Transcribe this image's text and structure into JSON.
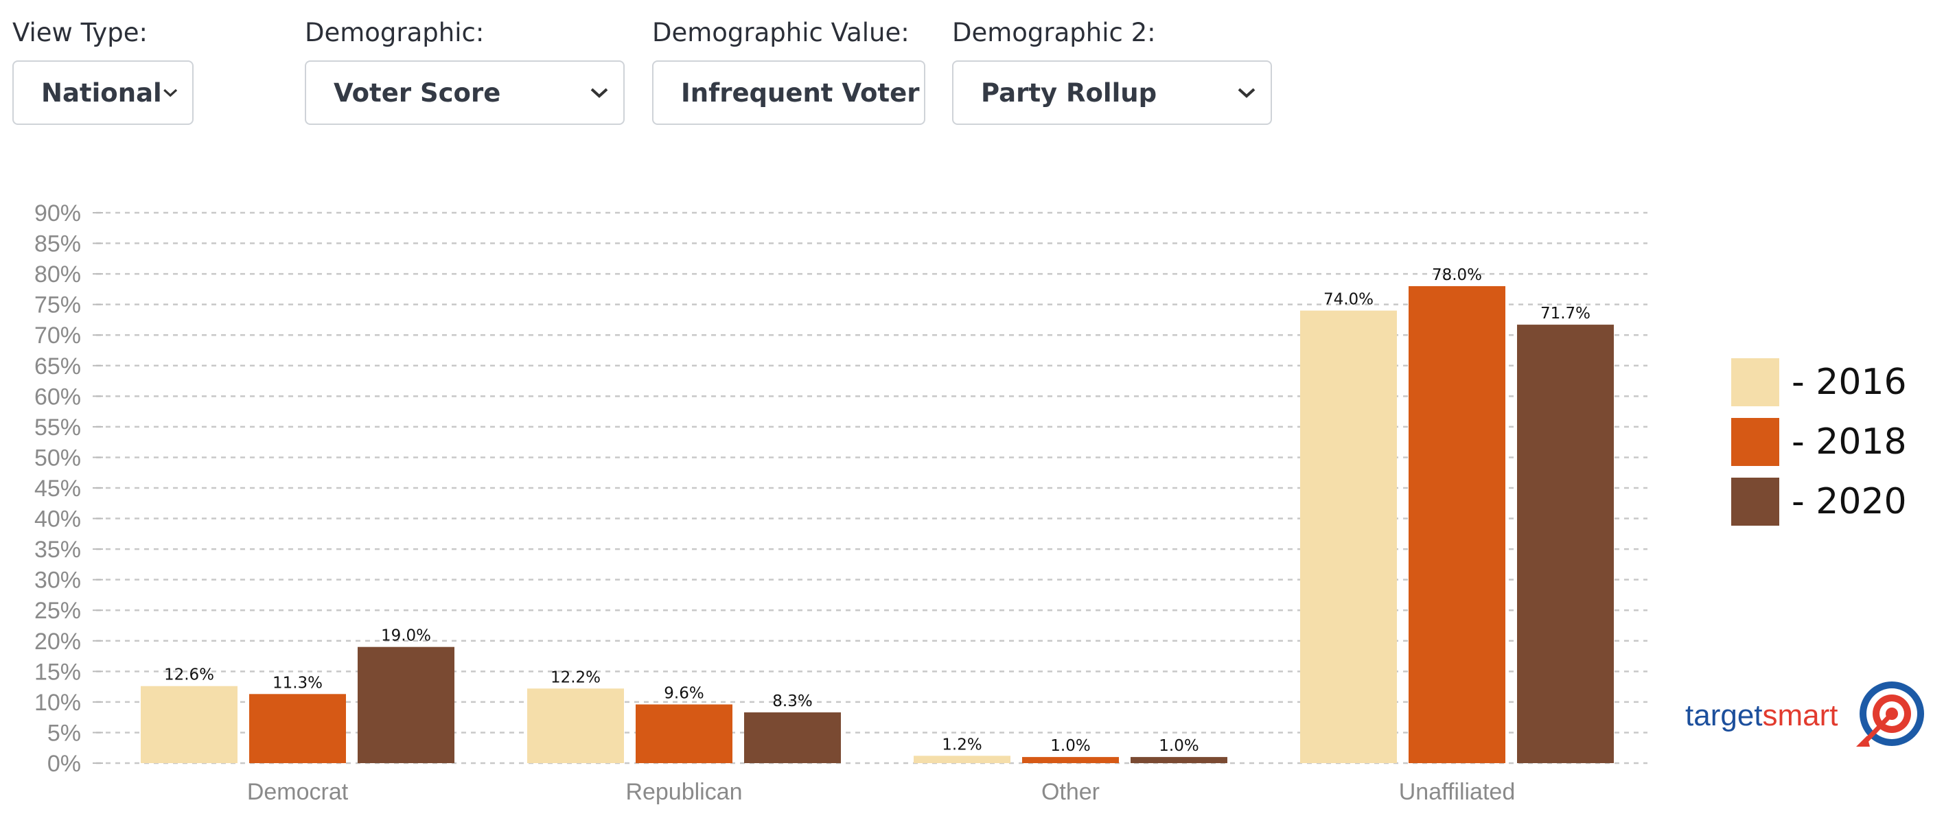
{
  "filters": [
    {
      "label": "View Type:",
      "value": "National"
    },
    {
      "label": "Demographic:",
      "value": "Voter Score"
    },
    {
      "label": "Demographic Value:",
      "value": "Infrequent Voter"
    },
    {
      "label": "Demographic 2:",
      "value": "Party Rollup"
    }
  ],
  "logo": {
    "part1": "target",
    "part2": "smart"
  },
  "colors": {
    "2016": "#f5deaa",
    "2018": "#d65915",
    "2020": "#7a4a32",
    "grid": "#c8c8c8"
  },
  "chart_data": {
    "type": "bar",
    "categories": [
      "Democrat",
      "Republican",
      "Other",
      "Unaffiliated"
    ],
    "series": [
      {
        "name": "- 2016",
        "values": [
          12.6,
          12.2,
          1.2,
          74.0
        ],
        "labels": [
          "12.6%",
          "12.2%",
          "1.2%",
          "74.0%"
        ]
      },
      {
        "name": "- 2018",
        "values": [
          11.3,
          9.6,
          1.0,
          78.0
        ],
        "labels": [
          "11.3%",
          "9.6%",
          "1.0%",
          "78.0%"
        ]
      },
      {
        "name": "- 2020",
        "values": [
          19.0,
          8.3,
          1.0,
          71.7
        ],
        "labels": [
          "19.0%",
          "8.3%",
          "1.0%",
          "71.7%"
        ]
      }
    ],
    "yticks": [
      "0%",
      "5%",
      "10%",
      "15%",
      "20%",
      "25%",
      "30%",
      "35%",
      "40%",
      "45%",
      "50%",
      "55%",
      "60%",
      "65%",
      "70%",
      "75%",
      "80%",
      "85%",
      "90%"
    ],
    "ylim": [
      0,
      90
    ],
    "grid": true,
    "legend": "right"
  }
}
